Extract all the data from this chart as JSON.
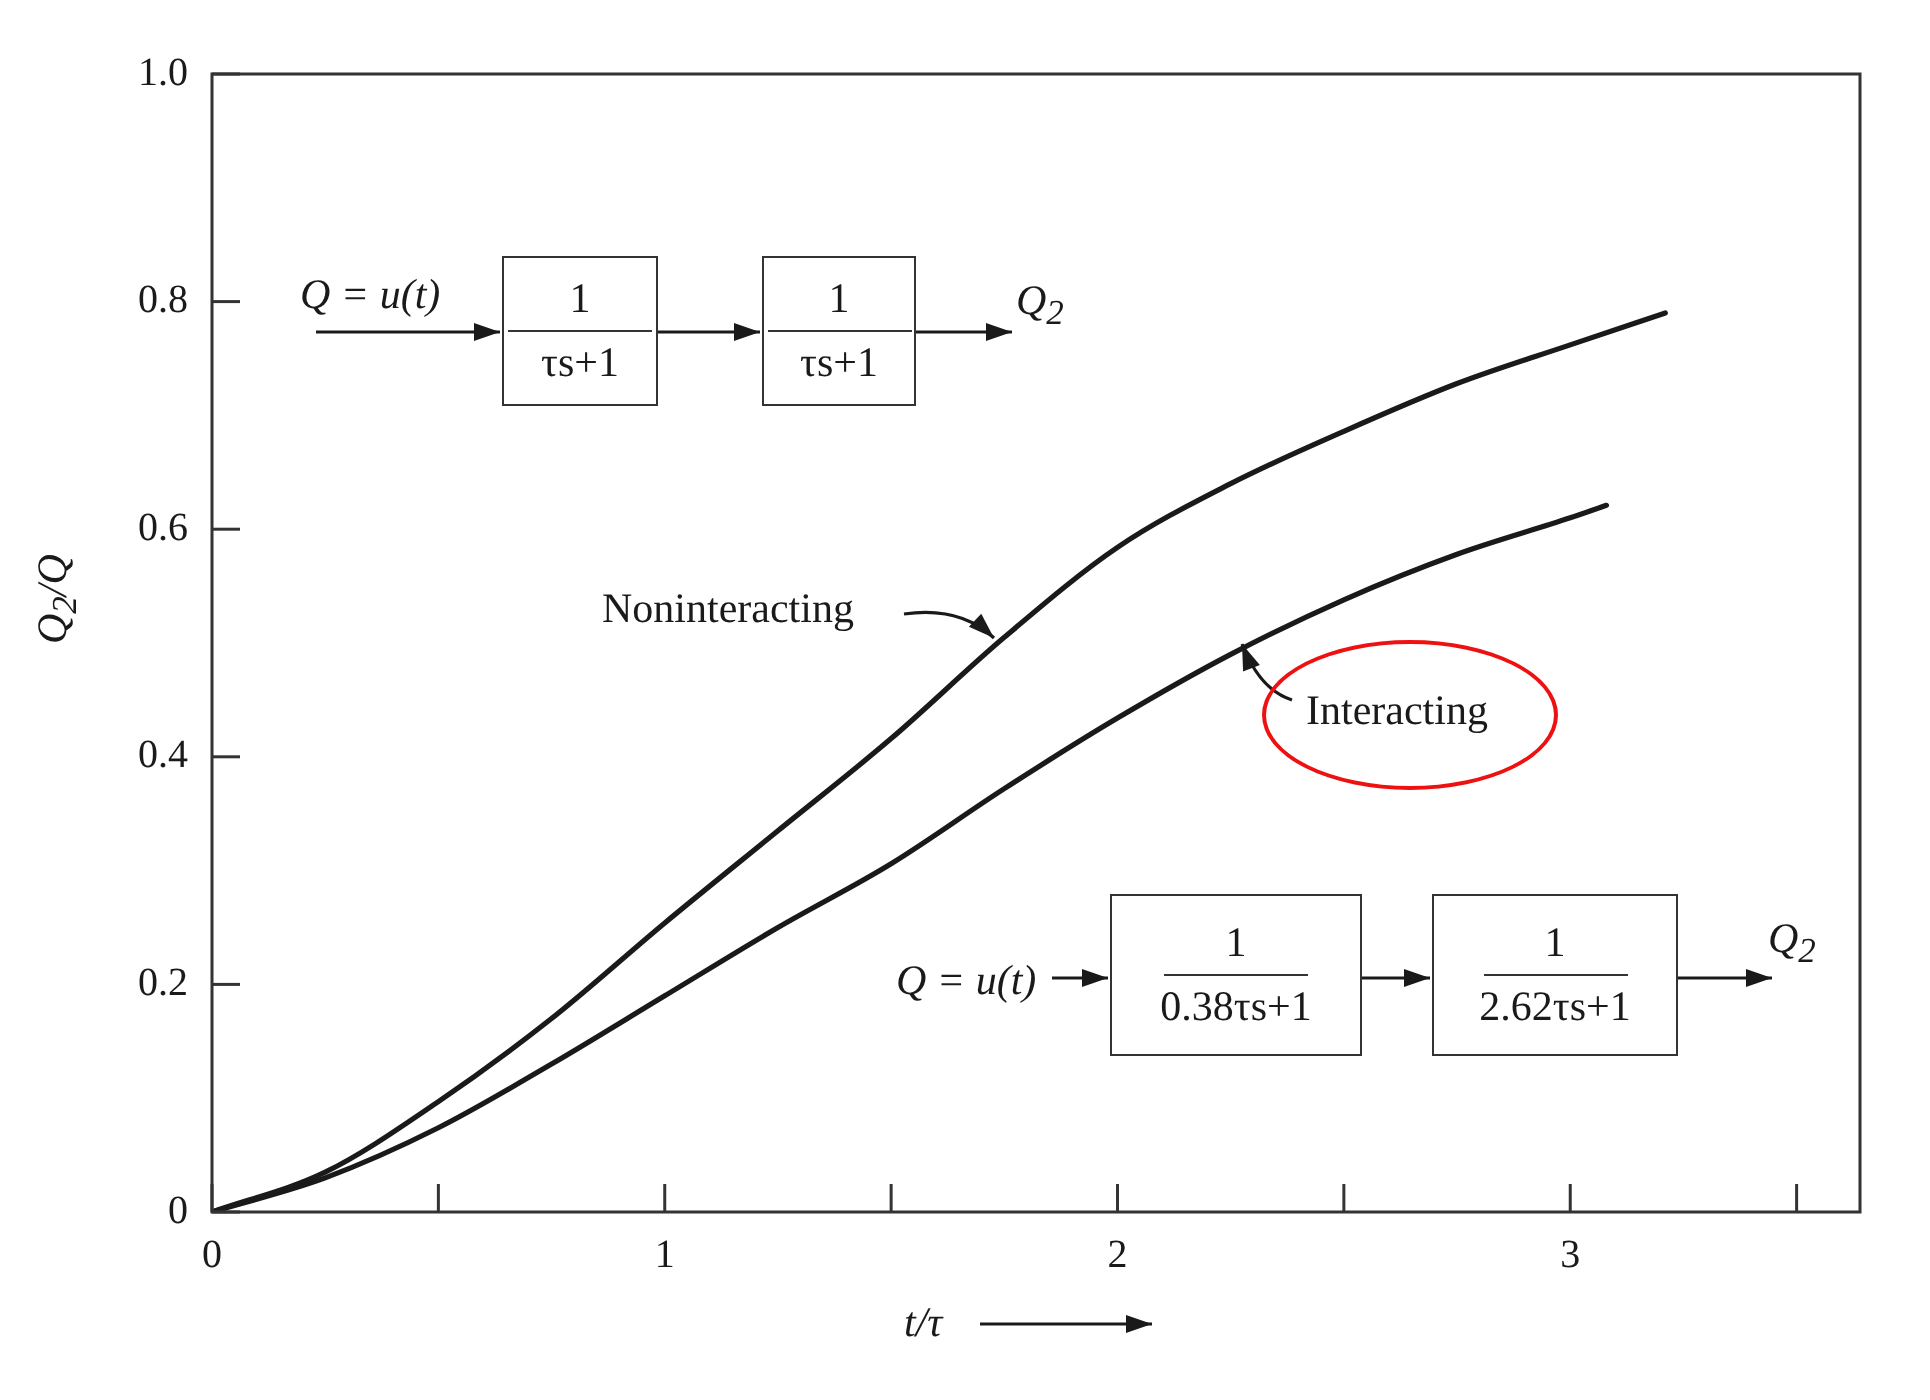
{
  "chart_data": {
    "type": "line",
    "xlabel": "t/τ",
    "ylabel": "Q$_{2}$/Q",
    "xlim": [
      0,
      3.64
    ],
    "ylim": [
      0,
      1
    ],
    "xticks": [
      0,
      {
        "value": 0.5,
        "label": null
      },
      1,
      {
        "value": 1.5,
        "label": null
      },
      2,
      {
        "value": 2.5,
        "label": null
      },
      3,
      {
        "value": 3.5,
        "label": null
      }
    ],
    "yticks": [
      0,
      0.2,
      0.4,
      0.6,
      0.8,
      {
        "value": 1,
        "label": "1.0"
      }
    ],
    "marker": "none",
    "line_style": "solid",
    "series": [
      {
        "name": "Noninteracting",
        "color": "#1a1a1a",
        "x": [
          0,
          0.25,
          0.5,
          0.75,
          1,
          1.25,
          1.5,
          1.75,
          2,
          2.25,
          2.5,
          2.75,
          3,
          3.21
        ],
        "values": [
          0,
          0.035,
          0.097,
          0.17,
          0.254,
          0.335,
          0.416,
          0.505,
          0.584,
          0.64,
          0.686,
          0.728,
          0.762,
          0.79
        ]
      },
      {
        "name": "Interacting",
        "color": "#1a1a1a",
        "x": [
          0,
          0.25,
          0.5,
          0.75,
          1,
          1.25,
          1.5,
          1.75,
          2,
          2.25,
          2.5,
          2.75,
          3,
          3.08
        ],
        "values": [
          0,
          0.03,
          0.074,
          0.13,
          0.19,
          0.25,
          0.306,
          0.372,
          0.434,
          0.49,
          0.538,
          0.578,
          0.61,
          0.621
        ]
      }
    ],
    "annotations": [
      "Q = u(t)",
      "1",
      "τs+1",
      "1",
      "τs+1",
      "Q$_{2}$",
      "Q = u(t)",
      "1",
      "0.38τs+1",
      "1",
      "2.62τs+1",
      "Q$_{2}$"
    ]
  }
}
